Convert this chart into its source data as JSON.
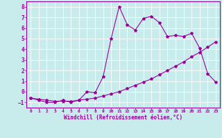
{
  "xlabel": "Windchill (Refroidissement éolien,°C)",
  "ylabel": "",
  "background_color": "#c8ecec",
  "grid_color": "#ffffff",
  "line_color": "#990099",
  "ylim": [
    -1.5,
    8.5
  ],
  "xlim": [
    -0.5,
    23.5
  ],
  "yticks": [
    -1,
    0,
    1,
    2,
    3,
    4,
    5,
    6,
    7,
    8
  ],
  "xticks": [
    0,
    1,
    2,
    3,
    4,
    5,
    6,
    7,
    8,
    9,
    10,
    11,
    12,
    13,
    14,
    15,
    16,
    17,
    18,
    19,
    20,
    21,
    22,
    23
  ],
  "line1_x": [
    0,
    1,
    2,
    3,
    4,
    5,
    6,
    7,
    8,
    9,
    10,
    11,
    12,
    13,
    14,
    15,
    16,
    17,
    18,
    19,
    20,
    21,
    22,
    23
  ],
  "line1_y": [
    -0.6,
    -0.8,
    -1.0,
    -1.0,
    -0.8,
    -1.0,
    -0.8,
    0.0,
    -0.1,
    1.4,
    5.0,
    8.0,
    6.3,
    5.8,
    6.9,
    7.1,
    6.5,
    5.2,
    5.3,
    5.2,
    5.5,
    4.1,
    1.7,
    0.9
  ],
  "line2_x": [
    0,
    1,
    2,
    3,
    4,
    5,
    6,
    7,
    8,
    9,
    10,
    11,
    12,
    13,
    14,
    15,
    16,
    17,
    18,
    19,
    20,
    21,
    22,
    23
  ],
  "line2_y": [
    -0.6,
    -0.7,
    -0.8,
    -0.9,
    -0.9,
    -0.9,
    -0.8,
    -0.7,
    -0.6,
    -0.4,
    -0.2,
    0.0,
    0.3,
    0.6,
    0.9,
    1.2,
    1.6,
    2.0,
    2.4,
    2.8,
    3.3,
    3.7,
    4.2,
    4.7
  ]
}
